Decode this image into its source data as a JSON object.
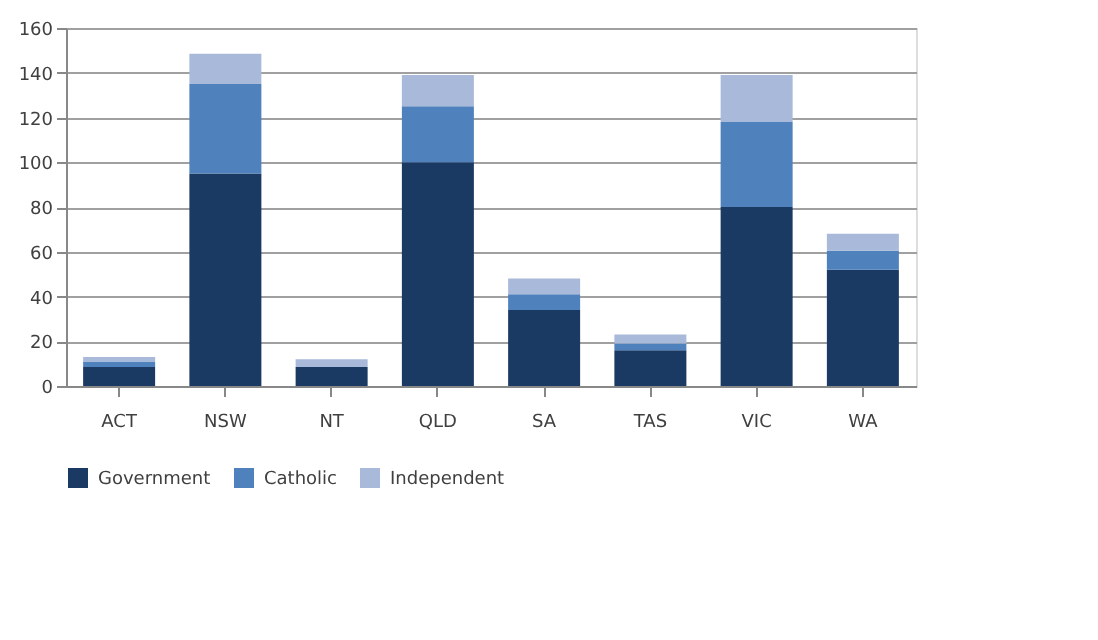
{
  "chart_data": {
    "type": "bar",
    "stacked": true,
    "categories": [
      "ACT",
      "NSW",
      "NT",
      "QLD",
      "SA",
      "TAS",
      "VIC",
      "WA"
    ],
    "series": [
      {
        "name": "Government",
        "color": "#1a3a63",
        "values": [
          8.5,
          95,
          8.5,
          100,
          34,
          16,
          80,
          52
        ]
      },
      {
        "name": "Catholic",
        "color": "#4f81bd",
        "values": [
          2.5,
          40,
          0,
          25,
          7,
          3,
          38,
          8.5
        ]
      },
      {
        "name": "Independent",
        "color": "#a9b9d9",
        "values": [
          2,
          13.5,
          3.5,
          14,
          7,
          4,
          21,
          7.5
        ]
      }
    ],
    "ylim": [
      0,
      160
    ],
    "yticks": [
      0,
      20,
      40,
      60,
      80,
      100,
      120,
      140,
      160
    ],
    "grid": "y",
    "legend": "bottom"
  }
}
